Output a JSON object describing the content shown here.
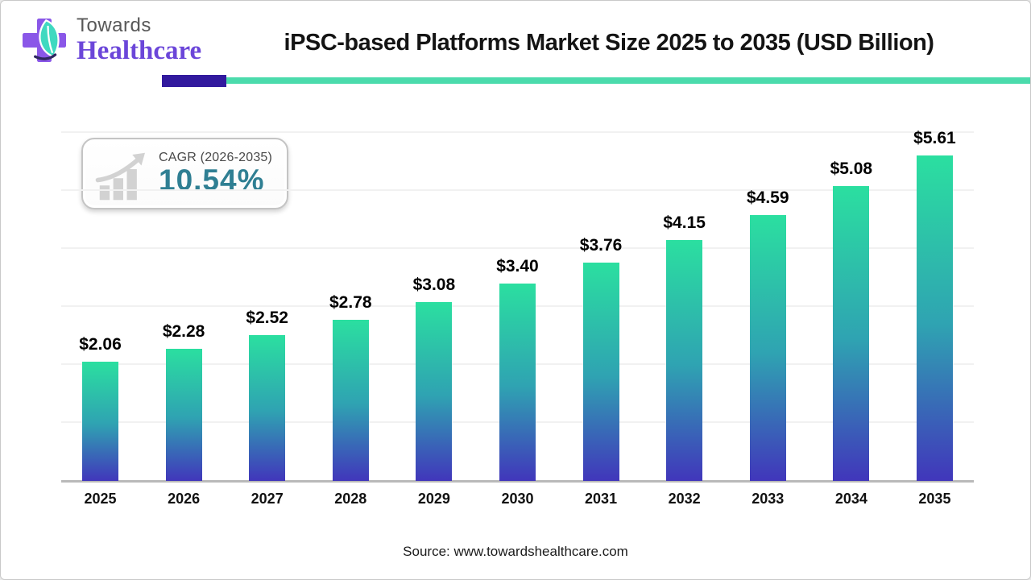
{
  "header": {
    "logo_top": "Towards",
    "logo_bottom": "Healthcare",
    "title": "iPSC-based Platforms Market Size 2025 to 2035 (USD Billion)"
  },
  "cagr": {
    "label": "CAGR (2026-2035)",
    "value": "10.54%"
  },
  "chart_data": {
    "type": "bar",
    "title": "iPSC-based Platforms Market Size 2025 to 2035 (USD Billion)",
    "categories": [
      "2025",
      "2026",
      "2027",
      "2028",
      "2029",
      "2030",
      "2031",
      "2032",
      "2033",
      "2034",
      "2035"
    ],
    "values": [
      2.06,
      2.28,
      2.52,
      2.78,
      3.08,
      3.4,
      3.76,
      4.15,
      4.59,
      5.08,
      5.61
    ],
    "value_labels": [
      "$2.06",
      "$2.28",
      "$2.52",
      "$2.78",
      "$3.08",
      "$3.40",
      "$3.76",
      "$4.15",
      "$4.59",
      "$5.08",
      "$5.61"
    ],
    "unit": "USD Billion",
    "xlabel": "",
    "ylabel": "",
    "ylim": [
      0,
      6
    ],
    "grid": true,
    "gridline_step": 1,
    "legend": "none",
    "bar_gradient_top": "#2bdfa0",
    "bar_gradient_bottom": "#4136bb"
  },
  "source": {
    "text": "Source: www.towardshealthcare.com"
  },
  "colors": {
    "accent_teal_rule": "#4bdbac",
    "accent_purple_rule": "#321a9e",
    "cagr_value_color": "#2f7f93",
    "logo_purple": "#8a57e8",
    "logo_leaf_teal": "#3fd9c0"
  }
}
